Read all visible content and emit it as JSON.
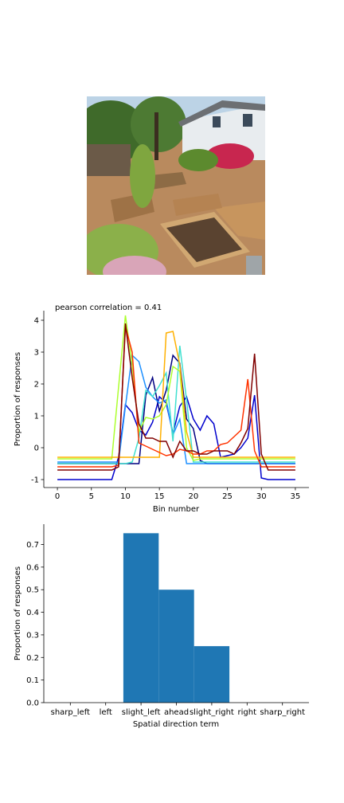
{
  "photo": {
    "description_icon": "garden-photo"
  },
  "chart_data": [
    {
      "type": "line",
      "title": "pearson correlation = 0.41",
      "xlabel": "Bin number",
      "ylabel": "Proportion of responses",
      "xlim": [
        -2,
        37
      ],
      "ylim": [
        -1.25,
        4.3
      ],
      "xticks": [
        0,
        5,
        10,
        15,
        20,
        25,
        30,
        35
      ],
      "yticks": [
        -1,
        0,
        1,
        2,
        3,
        4
      ],
      "grid": false,
      "legend": "none",
      "x": [
        0,
        1,
        2,
        3,
        4,
        5,
        6,
        7,
        8,
        9,
        10,
        11,
        12,
        13,
        14,
        15,
        16,
        17,
        18,
        19,
        20,
        21,
        22,
        23,
        24,
        25,
        26,
        27,
        28,
        29,
        30,
        31,
        32,
        33,
        34,
        35
      ],
      "series": [
        {
          "color": "#0000cd",
          "values": [
            -1,
            -1,
            -1,
            -1,
            -1,
            -1,
            -1,
            -1,
            -1,
            -0.3,
            1.35,
            1.1,
            0.55,
            0.4,
            0.8,
            1.6,
            1.4,
            0.45,
            1.3,
            1.6,
            0.9,
            0.55,
            1,
            0.75,
            -0.3,
            -0.25,
            -0.2,
            0,
            0.3,
            1.65,
            -0.95,
            -1,
            -1,
            -1,
            -1,
            -1
          ]
        },
        {
          "color": "#000080",
          "values": [
            -0.5,
            -0.5,
            -0.5,
            -0.5,
            -0.5,
            -0.5,
            -0.5,
            -0.5,
            -0.5,
            -0.5,
            -0.5,
            -0.5,
            -0.5,
            1.65,
            2.2,
            1.15,
            1.8,
            2.9,
            2.65,
            0.9,
            0.6,
            -0.4,
            -0.5,
            -0.5,
            -0.5,
            -0.5,
            -0.5,
            -0.5,
            -0.5,
            -0.5,
            -0.5,
            -0.5,
            -0.5,
            -0.5,
            -0.5,
            -0.5
          ]
        },
        {
          "color": "#1e90ff",
          "values": [
            -0.45,
            -0.45,
            -0.45,
            -0.45,
            -0.45,
            -0.45,
            -0.45,
            -0.45,
            -0.45,
            -0.45,
            1.3,
            2.9,
            2.7,
            1.9,
            1.6,
            1.4,
            1.5,
            0.4,
            0.9,
            -0.5,
            -0.5,
            -0.5,
            -0.5,
            -0.5,
            -0.5,
            -0.5,
            -0.5,
            -0.5,
            -0.5,
            -0.5,
            -0.5,
            -0.5,
            -0.5,
            -0.5,
            -0.5,
            -0.5
          ]
        },
        {
          "color": "#40e0d0",
          "values": [
            -0.5,
            -0.5,
            -0.5,
            -0.5,
            -0.5,
            -0.5,
            -0.5,
            -0.5,
            -0.5,
            -0.5,
            -0.5,
            -0.45,
            0.3,
            1.8,
            1.6,
            1.95,
            2.35,
            0.2,
            3.2,
            1.5,
            -0.45,
            -0.45,
            -0.45,
            -0.45,
            -0.45,
            -0.45,
            -0.45,
            -0.45,
            -0.45,
            -0.45,
            -0.45,
            -0.45,
            -0.45,
            -0.45,
            -0.45,
            -0.45
          ]
        },
        {
          "color": "#adff2f",
          "values": [
            -0.35,
            -0.35,
            -0.35,
            -0.35,
            -0.35,
            -0.35,
            -0.35,
            -0.35,
            -0.35,
            1.9,
            4.15,
            2.6,
            0.5,
            0.95,
            0.9,
            1,
            1.35,
            2.55,
            2.4,
            0,
            -0.4,
            -0.35,
            -0.35,
            -0.35,
            -0.35,
            -0.35,
            -0.35,
            -0.35,
            -0.35,
            -0.35,
            -0.35,
            -0.35,
            -0.35,
            -0.35,
            -0.35,
            -0.35
          ]
        },
        {
          "color": "#ffb000",
          "values": [
            -0.3,
            -0.3,
            -0.3,
            -0.3,
            -0.3,
            -0.3,
            -0.3,
            -0.3,
            -0.3,
            -0.3,
            -0.3,
            -0.3,
            -0.3,
            -0.3,
            -0.3,
            -0.3,
            3.6,
            3.65,
            2.6,
            0.5,
            -0.3,
            -0.3,
            -0.3,
            -0.3,
            -0.3,
            -0.3,
            -0.3,
            -0.3,
            -0.3,
            -0.3,
            -0.3,
            -0.3,
            -0.3,
            -0.3,
            -0.3,
            -0.3
          ]
        },
        {
          "color": "#ff3300",
          "values": [
            -0.6,
            -0.6,
            -0.6,
            -0.6,
            -0.6,
            -0.6,
            -0.6,
            -0.6,
            -0.6,
            -0.55,
            3.8,
            3,
            0.15,
            0.05,
            -0.05,
            -0.15,
            -0.25,
            -0.2,
            -0.05,
            -0.1,
            -0.2,
            -0.2,
            -0.1,
            -0.1,
            0.1,
            0.15,
            0.35,
            0.55,
            2.15,
            -0.1,
            -0.6,
            -0.6,
            -0.6,
            -0.6,
            -0.6,
            -0.6
          ]
        },
        {
          "color": "#800000",
          "values": [
            -0.7,
            -0.7,
            -0.7,
            -0.7,
            -0.7,
            -0.7,
            -0.7,
            -0.7,
            -0.7,
            -0.6,
            3.9,
            2.2,
            0.75,
            0.3,
            0.3,
            0.2,
            0.2,
            -0.3,
            0.2,
            -0.1,
            -0.1,
            -0.2,
            -0.2,
            -0.1,
            -0.1,
            -0.1,
            -0.2,
            0.15,
            0.6,
            2.95,
            -0.2,
            -0.7,
            -0.7,
            -0.7,
            -0.7,
            -0.7
          ]
        }
      ]
    },
    {
      "type": "bar",
      "xlabel": "Spatial direction term",
      "ylabel": "Proportion of responses",
      "categories": [
        "sharp_left",
        "left",
        "slight_left",
        "ahead",
        "slight_right",
        "right",
        "sharp_right"
      ],
      "values": [
        0,
        0,
        0.75,
        0.5,
        0.25,
        0,
        0
      ],
      "ylim": [
        0,
        0.79
      ],
      "yticks": [
        "0.0",
        "0.1",
        "0.2",
        "0.3",
        "0.4",
        "0.5",
        "0.6",
        "0.7"
      ],
      "color": "#1f77b4",
      "grid": false,
      "legend": "none"
    }
  ]
}
